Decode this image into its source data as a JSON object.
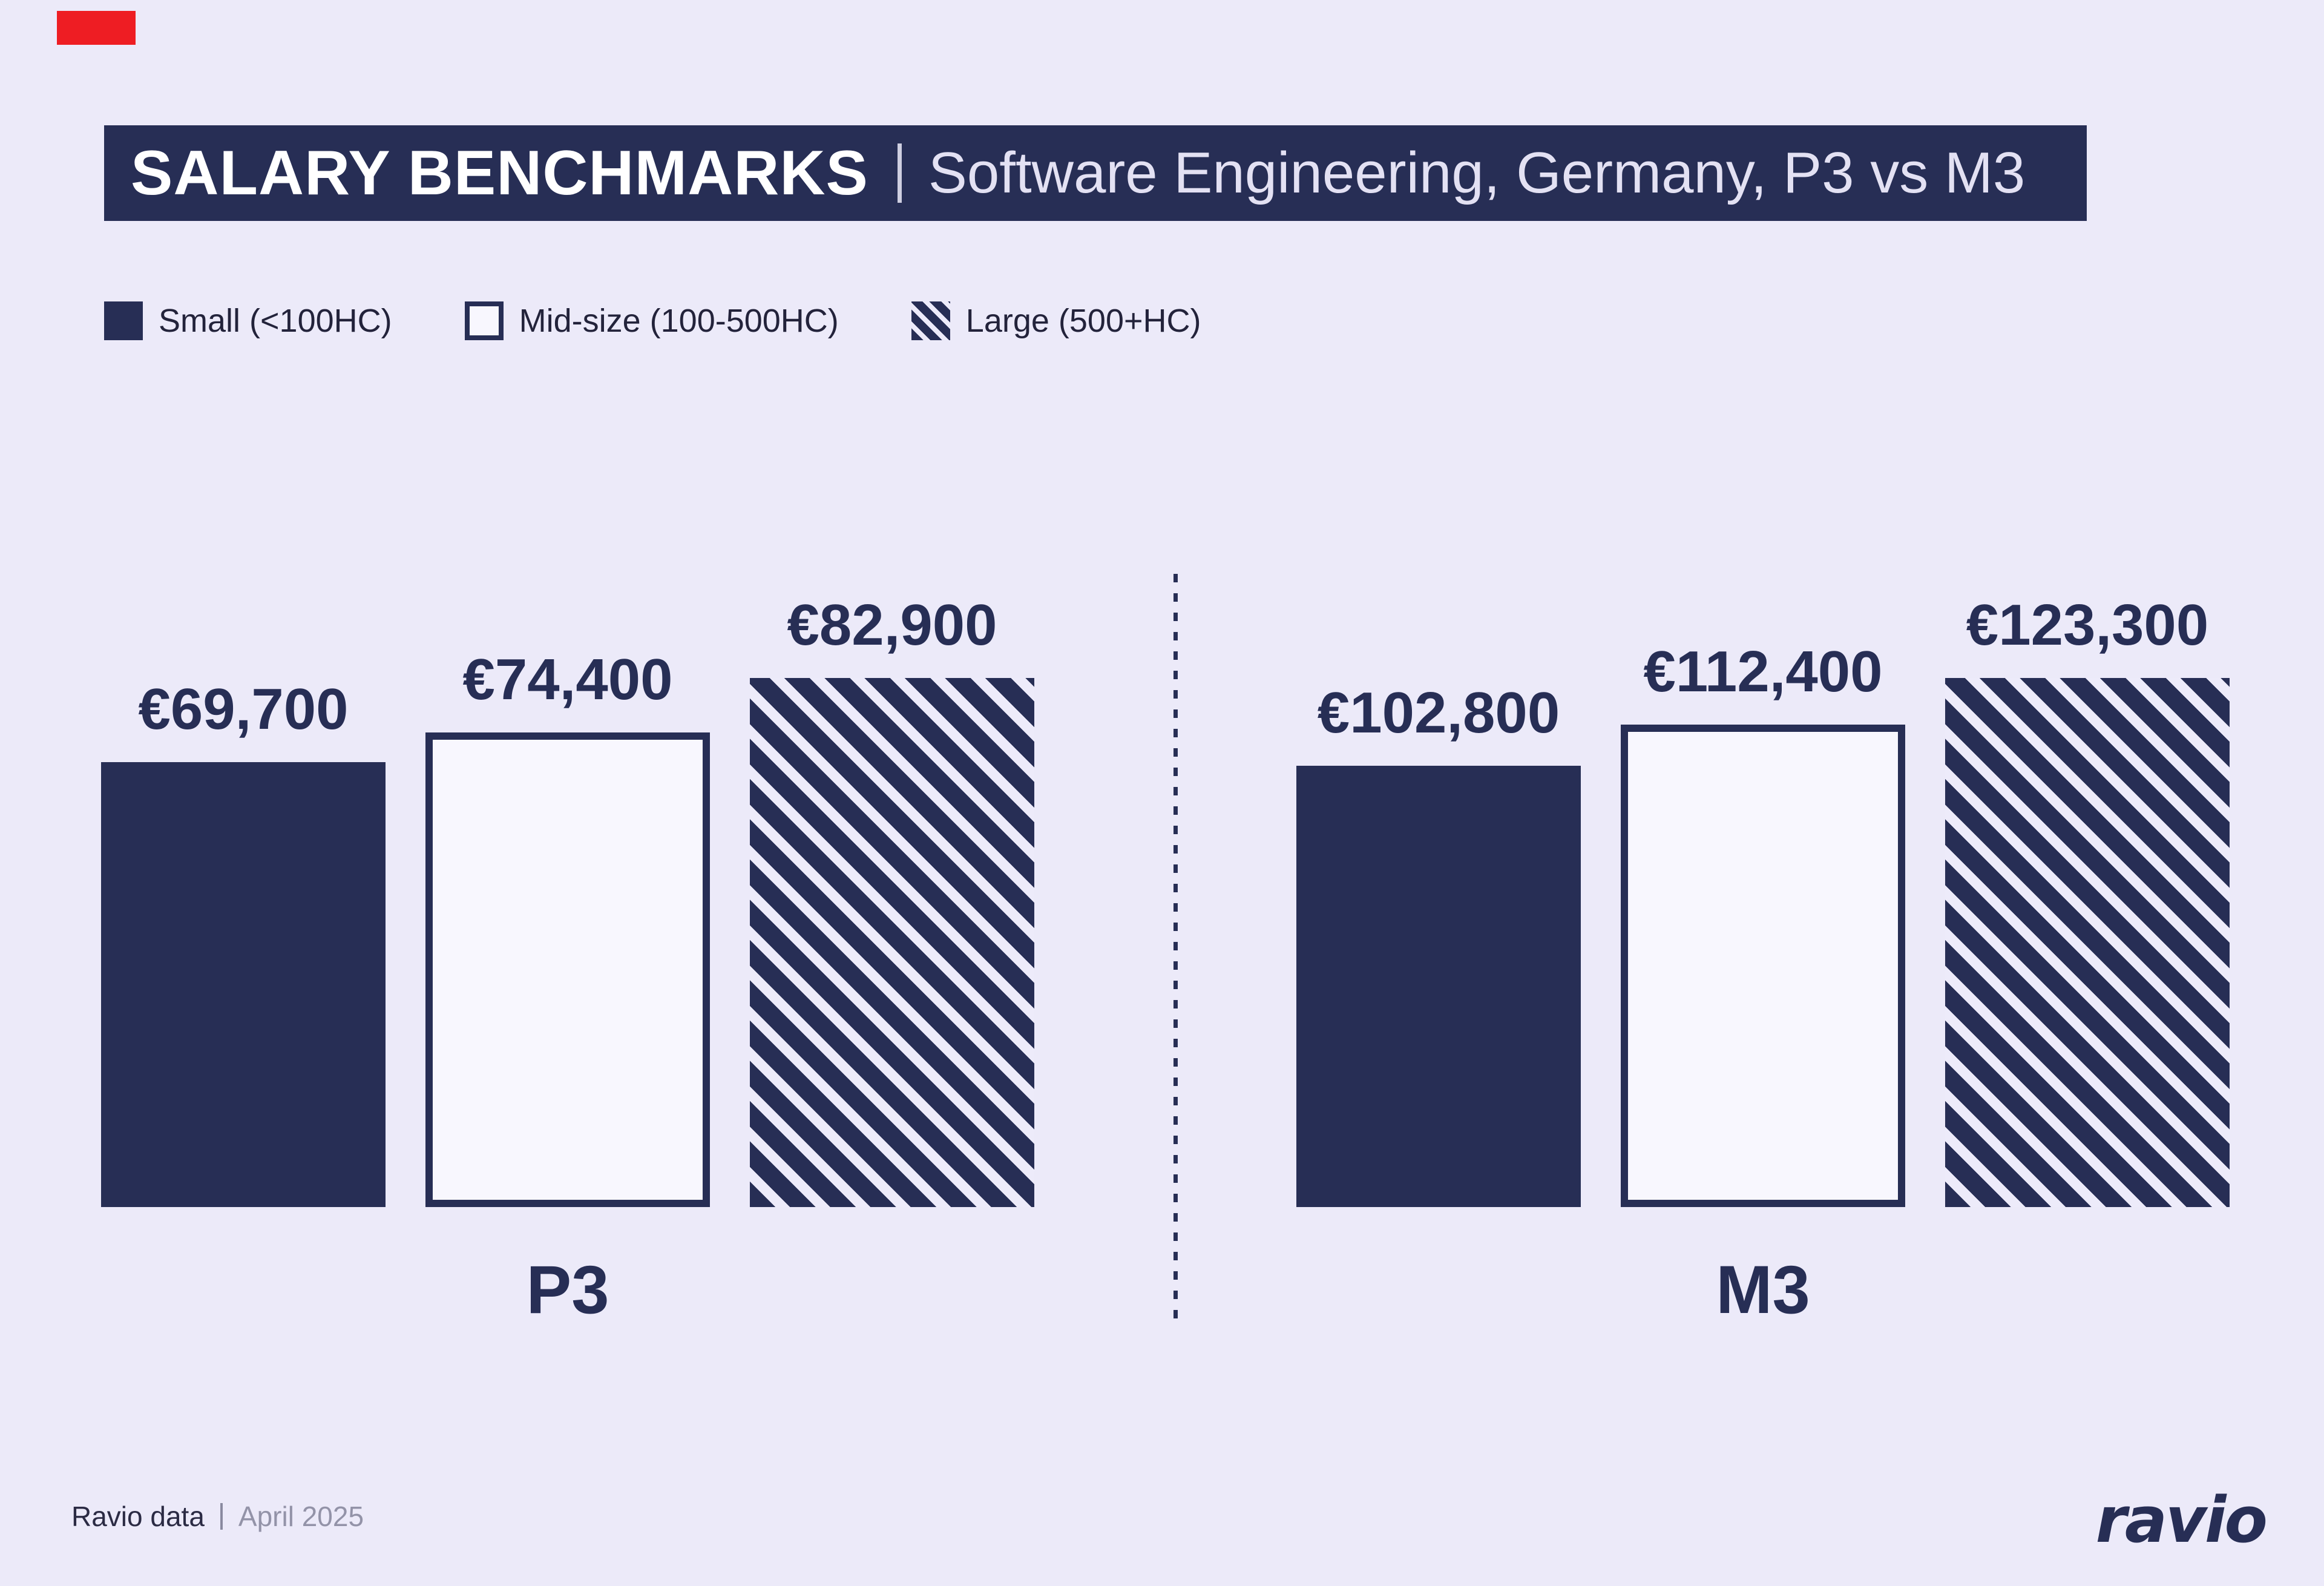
{
  "page": {
    "background": "#ECEAF9",
    "accent_navy": "#272E55",
    "flag_red": "#EE1D23"
  },
  "header": {
    "title": "SALARY BENCHMARKS",
    "divider": "|",
    "subtitle": "Software Engineering, Germany, P3 vs M3"
  },
  "legend": {
    "items": [
      {
        "label": "Small (<100HC)",
        "swatch": "solid"
      },
      {
        "label": "Mid-size (100-500HC)",
        "swatch": "outline"
      },
      {
        "label": "Large (500+HC)",
        "swatch": "hatch"
      }
    ]
  },
  "chart_data": {
    "type": "bar",
    "title": "Salary Benchmarks — Software Engineering, Germany, P3 vs M3",
    "unit": "EUR",
    "series": [
      "Small (<100HC)",
      "Mid-size (100-500HC)",
      "Large (500+HC)"
    ],
    "bar_style_by_series": [
      "solid",
      "outline",
      "hatch"
    ],
    "groups": [
      {
        "label": "P3",
        "values": [
          69700,
          74400,
          82900
        ],
        "value_labels": [
          "€69,700",
          "€74,400",
          "€82,900"
        ]
      },
      {
        "label": "M3",
        "values": [
          102800,
          112400,
          123300
        ],
        "value_labels": [
          "€102,800",
          "€112,400",
          "€123,300"
        ]
      }
    ],
    "ylim": [
      0,
      123300
    ],
    "scaling": "bars normalized to tallest bar within each group",
    "grid": false,
    "legend_position": "top-left"
  },
  "footer": {
    "source": "Ravio data",
    "divider": "|",
    "date": "April 2025",
    "brand": "ravio"
  }
}
